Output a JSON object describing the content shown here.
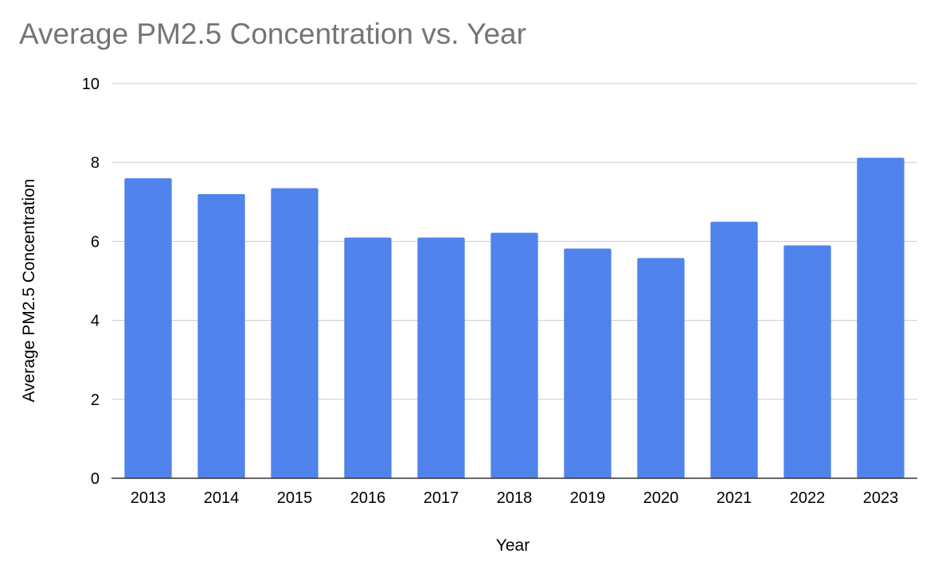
{
  "chart_data": {
    "type": "bar",
    "title": "Average PM2.5 Concentration vs. Year",
    "xlabel": "Year",
    "ylabel": "Average PM2.5 Concentration",
    "categories": [
      "2013",
      "2014",
      "2015",
      "2016",
      "2017",
      "2018",
      "2019",
      "2020",
      "2021",
      "2022",
      "2023"
    ],
    "series": [
      {
        "values": [
          7.6,
          7.2,
          7.35,
          6.1,
          6.1,
          6.22,
          5.82,
          5.58,
          6.5,
          5.9,
          8.12
        ]
      }
    ],
    "ylim": [
      0,
      10
    ],
    "yticks": [
      "0",
      "2",
      "4",
      "6",
      "8",
      "10"
    ],
    "grid": true,
    "legend": "none",
    "colors": {
      "bar": "#5083eb",
      "grid": "#cccccc",
      "axis": "#333333",
      "title": "#757575"
    }
  }
}
